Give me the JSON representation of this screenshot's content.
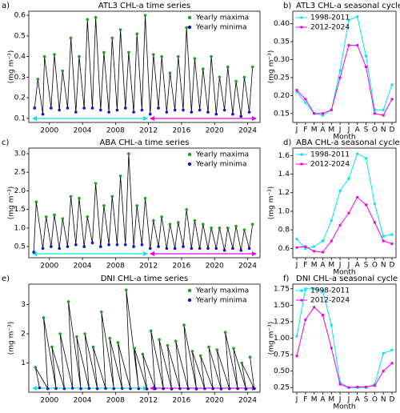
{
  "chart_data": [
    {
      "type": "scatter",
      "label": "a)",
      "title": "ATL3 CHL-a time series",
      "ylabel": "(mg m⁻³)",
      "xlim": [
        1997.5,
        2025.5
      ],
      "xticks": [
        2000,
        2004,
        2008,
        2012,
        2016,
        2020,
        2024
      ],
      "ylim": [
        0.08,
        0.62
      ],
      "yticks": [
        0.1,
        0.2,
        0.3,
        0.4,
        0.5,
        0.6
      ],
      "series": [
        {
          "name": "Yearly maxima",
          "color": "#1f9e1f",
          "x": [
            1998.6,
            1999.4,
            2000.6,
            2001.6,
            2002.6,
            2003.6,
            2004.6,
            2005.6,
            2006.6,
            2007.6,
            2008.6,
            2009.6,
            2010.6,
            2011.6,
            2012.6,
            2013.6,
            2014.6,
            2015.6,
            2016.6,
            2017.6,
            2018.6,
            2019.6,
            2020.6,
            2021.6,
            2022.6,
            2023.6,
            2024.6
          ],
          "values": [
            0.29,
            0.4,
            0.41,
            0.33,
            0.49,
            0.4,
            0.58,
            0.59,
            0.42,
            0.49,
            0.53,
            0.42,
            0.51,
            0.6,
            0.41,
            0.4,
            0.32,
            0.4,
            0.54,
            0.39,
            0.34,
            0.4,
            0.3,
            0.35,
            0.28,
            0.3,
            0.35
          ]
        },
        {
          "name": "Yearly minima",
          "color": "#1010c8",
          "x": [
            1998.2,
            1999.2,
            2000.2,
            2001.2,
            2002.2,
            2003.2,
            2004.2,
            2005.2,
            2006.2,
            2007.2,
            2008.2,
            2009.2,
            2010.2,
            2011.2,
            2012.2,
            2013.2,
            2014.2,
            2015.2,
            2016.2,
            2017.2,
            2018.2,
            2019.2,
            2020.2,
            2021.2,
            2022.2,
            2023.2,
            2024.2
          ],
          "values": [
            0.15,
            0.12,
            0.15,
            0.14,
            0.15,
            0.13,
            0.15,
            0.15,
            0.14,
            0.13,
            0.14,
            0.15,
            0.13,
            0.14,
            0.12,
            0.15,
            0.13,
            0.14,
            0.14,
            0.13,
            0.14,
            0.13,
            0.12,
            0.14,
            0.12,
            0.11,
            0.13
          ]
        }
      ]
    },
    {
      "type": "line",
      "label": "b)",
      "title": "ATL3 CHL-a seasonal cycle",
      "ylabel": "(mg m⁻³)",
      "xlabel": "Month",
      "categories": [
        "J",
        "F",
        "M",
        "A",
        "M",
        "J",
        "J",
        "A",
        "S",
        "O",
        "N",
        "D"
      ],
      "ylim": [
        0.125,
        0.435
      ],
      "yticks": [
        0.15,
        {
          "value": 0.2,
          "label": "0.20"
        },
        0.25,
        {
          "value": 0.3,
          "label": "0.30"
        },
        0.35,
        {
          "value": 0.4,
          "label": "0.40"
        }
      ],
      "series": [
        {
          "name": "1998-2011",
          "color": "#00e5ee",
          "values": [
            0.21,
            0.18,
            0.15,
            0.145,
            0.16,
            0.27,
            0.41,
            0.42,
            0.31,
            0.16,
            0.16,
            0.23
          ]
        },
        {
          "name": "2012-2024",
          "color": "#ee00ee",
          "values": [
            0.215,
            0.19,
            0.15,
            0.15,
            0.16,
            0.25,
            0.34,
            0.34,
            0.28,
            0.15,
            0.145,
            0.19
          ]
        }
      ]
    },
    {
      "type": "scatter",
      "label": "c)",
      "title": "ABA CHL-a time series",
      "ylabel": "(mg m⁻³)",
      "xlim": [
        1997.5,
        2025.5
      ],
      "xticks": [
        2000,
        2004,
        2008,
        2012,
        2016,
        2020,
        2024
      ],
      "ylim": [
        0.2,
        3.15
      ],
      "yticks": [
        0.5,
        {
          "value": 1,
          "label": "1.0"
        },
        1.5,
        {
          "value": 2,
          "label": "2.0"
        },
        2.5,
        {
          "value": 3,
          "label": "3.0"
        }
      ],
      "series": [
        {
          "name": "Yearly maxima",
          "color": "#1f9e1f",
          "x": [
            1998.4,
            1999.6,
            2000.6,
            2001.6,
            2002.6,
            2003.6,
            2004.6,
            2005.6,
            2006.6,
            2007.6,
            2008.6,
            2009.6,
            2010.6,
            2011.6,
            2012.6,
            2013.6,
            2014.6,
            2015.6,
            2016.6,
            2017.6,
            2018.6,
            2019.6,
            2020.6,
            2021.6,
            2022.6,
            2023.6,
            2024.6
          ],
          "values": [
            1.7,
            1.3,
            1.35,
            1.25,
            1.85,
            1.8,
            1.3,
            2.2,
            1.6,
            1.85,
            2.4,
            3.0,
            1.6,
            1.8,
            1.2,
            1.3,
            1.1,
            1.15,
            1.5,
            1.2,
            1.1,
            1.0,
            1.0,
            1.0,
            1.05,
            0.95,
            1.1
          ]
        },
        {
          "name": "Yearly minima",
          "color": "#1010c8",
          "x": [
            1998.1,
            1999.2,
            2000.2,
            2001.2,
            2002.2,
            2003.2,
            2004.2,
            2005.2,
            2006.2,
            2007.2,
            2008.2,
            2009.2,
            2010.2,
            2011.2,
            2012.2,
            2013.2,
            2014.2,
            2015.2,
            2016.2,
            2017.2,
            2018.2,
            2019.2,
            2020.2,
            2021.2,
            2022.2,
            2023.2,
            2024.2
          ],
          "values": [
            0.35,
            0.45,
            0.5,
            0.45,
            0.5,
            0.55,
            0.5,
            0.6,
            0.5,
            0.55,
            0.55,
            0.55,
            0.5,
            0.55,
            0.45,
            0.5,
            0.45,
            0.45,
            0.5,
            0.45,
            0.45,
            0.45,
            0.45,
            0.4,
            0.45,
            0.4,
            0.45
          ]
        }
      ]
    },
    {
      "type": "line",
      "label": "d)",
      "title": "ABA CHL-a seasonal cycle",
      "ylabel": "(mg m⁻³)",
      "xlabel": "Month",
      "categories": [
        "J",
        "F",
        "M",
        "A",
        "M",
        "J",
        "J",
        "A",
        "S",
        "O",
        "N",
        "D"
      ],
      "ylim": [
        0.5,
        1.68
      ],
      "yticks": [
        0.6,
        0.8,
        {
          "value": 1,
          "label": "1.0"
        },
        1.2,
        1.4,
        1.6
      ],
      "series": [
        {
          "name": "1998-2011",
          "color": "#00e5ee",
          "values": [
            0.7,
            0.6,
            0.62,
            0.68,
            0.9,
            1.22,
            1.35,
            1.62,
            1.57,
            1.08,
            0.73,
            0.75
          ]
        },
        {
          "name": "2012-2024",
          "color": "#ee00ee",
          "values": [
            0.61,
            0.62,
            0.57,
            0.56,
            0.68,
            0.85,
            0.98,
            1.15,
            1.07,
            0.88,
            0.68,
            0.65
          ]
        }
      ]
    },
    {
      "type": "scatter",
      "label": "e)",
      "title": "DNI CHL-a time series",
      "ylabel": "(mg m⁻³)",
      "xlim": [
        1997.5,
        2025.5
      ],
      "xticks": [
        2000,
        2004,
        2008,
        2012,
        2016,
        2020,
        2024
      ],
      "ylim": [
        0,
        3.7
      ],
      "yticks": [
        1,
        2,
        3
      ],
      "series": [
        {
          "name": "Yearly maxima",
          "color": "#1f9e1f",
          "x": [
            1998.3,
            1999.3,
            2000.3,
            2001.3,
            2002.3,
            2003.3,
            2004.3,
            2005.3,
            2006.3,
            2007.3,
            2008.3,
            2009.3,
            2010.3,
            2011.3,
            2012.3,
            2013.3,
            2014.3,
            2015.3,
            2016.3,
            2017.3,
            2018.3,
            2019.3,
            2020.3,
            2021.3,
            2022.3,
            2023.3,
            2024.3
          ],
          "values": [
            0.85,
            2.55,
            1.55,
            2.0,
            3.1,
            1.9,
            2.0,
            1.55,
            2.75,
            1.85,
            1.7,
            3.5,
            1.5,
            1.3,
            2.1,
            1.8,
            1.6,
            1.75,
            2.3,
            1.4,
            1.25,
            1.55,
            1.45,
            2.05,
            1.5,
            1.0,
            1.2
          ]
        },
        {
          "name": "Yearly minima",
          "color": "#1010c8",
          "x": [
            1998.8,
            1999.8,
            2000.8,
            2001.8,
            2002.8,
            2003.8,
            2004.8,
            2005.8,
            2006.8,
            2007.8,
            2008.8,
            2009.8,
            2010.8,
            2011.8,
            2012.8,
            2013.8,
            2014.8,
            2015.8,
            2016.8,
            2017.8,
            2018.8,
            2019.8,
            2020.8,
            2021.8,
            2022.8,
            2023.8,
            2024.8
          ],
          "values": [
            0.15,
            0.12,
            0.13,
            0.12,
            0.14,
            0.12,
            0.13,
            0.12,
            0.13,
            0.12,
            0.13,
            0.12,
            0.12,
            0.11,
            0.12,
            0.12,
            0.11,
            0.12,
            0.12,
            0.11,
            0.12,
            0.12,
            0.11,
            0.12,
            0.12,
            0.11,
            0.12
          ]
        }
      ]
    },
    {
      "type": "line",
      "label": "f)",
      "title": "DNI CHL-a seasonal cycle",
      "ylabel": "(mg m⁻³)",
      "xlabel": "Month",
      "categories": [
        "J",
        "F",
        "M",
        "A",
        "M",
        "J",
        "J",
        "A",
        "S",
        "O",
        "N",
        "D"
      ],
      "ylim": [
        0.18,
        1.82
      ],
      "yticks": [
        0.25,
        {
          "value": 0.5,
          "label": "0.50"
        },
        0.75,
        {
          "value": 1,
          "label": "1.00"
        },
        1.25,
        {
          "value": 1.5,
          "label": "1.50"
        },
        1.75
      ],
      "series": [
        {
          "name": "1998-2011",
          "color": "#00e5ee",
          "values": [
            1.03,
            1.75,
            1.75,
            1.72,
            1.2,
            0.33,
            0.25,
            0.25,
            0.25,
            0.3,
            0.77,
            0.82
          ]
        },
        {
          "name": "2012-2024",
          "color": "#ee00ee",
          "values": [
            0.73,
            1.28,
            1.47,
            1.35,
            0.85,
            0.3,
            0.25,
            0.26,
            0.26,
            0.28,
            0.5,
            0.62
          ]
        }
      ]
    }
  ]
}
